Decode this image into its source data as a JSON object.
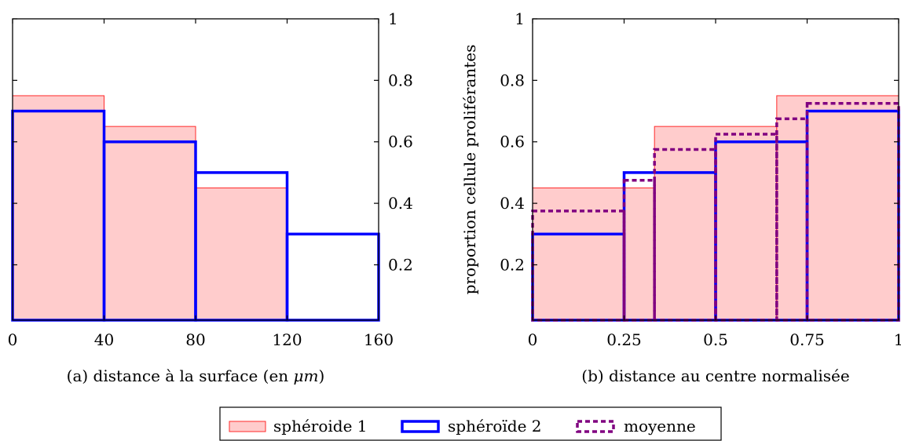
{
  "chart_data": [
    {
      "type": "bar",
      "panel_label": "(a)",
      "caption_pre": "(a) distance à la surface (en ",
      "caption_unit": "μm",
      "caption_post": ")",
      "xlabel": "",
      "ylabel": "",
      "xlim": [
        0,
        160
      ],
      "ylim": [
        0.02,
        1
      ],
      "xticks": [
        "0",
        "40",
        "80",
        "120",
        "160"
      ],
      "xtick_values": [
        0,
        40,
        80,
        120,
        160
      ],
      "yticks": [
        "0.2",
        "0.4",
        "0.6",
        "0.8",
        "1"
      ],
      "ytick_values": [
        0.2,
        0.4,
        0.6,
        0.8,
        1
      ],
      "y_axis_side": "right",
      "series": [
        {
          "name": "sphéroide 1",
          "style": "filled",
          "bins": [
            {
              "x0": 0,
              "x1": 40,
              "y": 0.75
            },
            {
              "x0": 40,
              "x1": 80,
              "y": 0.65
            },
            {
              "x0": 80,
              "x1": 120,
              "y": 0.45
            }
          ]
        },
        {
          "name": "sphéroïde 2",
          "style": "outline",
          "bins": [
            {
              "x0": 0,
              "x1": 40,
              "y": 0.7
            },
            {
              "x0": 40,
              "x1": 80,
              "y": 0.6
            },
            {
              "x0": 80,
              "x1": 120,
              "y": 0.5
            },
            {
              "x0": 120,
              "x1": 160,
              "y": 0.3
            }
          ]
        }
      ]
    },
    {
      "type": "bar",
      "panel_label": "(b)",
      "caption": "(b) distance au centre normalisée",
      "xlabel": "",
      "ylabel": "proportion cellule proliférantes",
      "xlim": [
        0,
        1
      ],
      "ylim": [
        0.02,
        1
      ],
      "xticks": [
        "0",
        "0.25",
        "0.5",
        "0.75",
        "1"
      ],
      "xtick_values": [
        0,
        0.25,
        0.5,
        0.75,
        1
      ],
      "yticks": [
        "0.2",
        "0.4",
        "0.6",
        "0.8",
        "1"
      ],
      "ytick_values": [
        0.2,
        0.4,
        0.6,
        0.8,
        1
      ],
      "y_axis_side": "left",
      "series": [
        {
          "name": "sphéroide 1",
          "style": "filled",
          "bins": [
            {
              "x0": 0,
              "x1": 0.333,
              "y": 0.45
            },
            {
              "x0": 0.333,
              "x1": 0.667,
              "y": 0.65
            },
            {
              "x0": 0.667,
              "x1": 1,
              "y": 0.75
            }
          ]
        },
        {
          "name": "sphéroïde 2",
          "style": "outline",
          "bins": [
            {
              "x0": 0,
              "x1": 0.25,
              "y": 0.3
            },
            {
              "x0": 0.25,
              "x1": 0.5,
              "y": 0.5
            },
            {
              "x0": 0.5,
              "x1": 0.75,
              "y": 0.6
            },
            {
              "x0": 0.75,
              "x1": 1,
              "y": 0.7
            }
          ]
        },
        {
          "name": "moyenne",
          "style": "dashed",
          "bins": [
            {
              "x0": 0,
              "x1": 0.25,
              "y": 0.375
            },
            {
              "x0": 0.25,
              "x1": 0.333,
              "y": 0.475
            },
            {
              "x0": 0.333,
              "x1": 0.5,
              "y": 0.575
            },
            {
              "x0": 0.5,
              "x1": 0.667,
              "y": 0.625
            },
            {
              "x0": 0.667,
              "x1": 0.75,
              "y": 0.675
            },
            {
              "x0": 0.75,
              "x1": 1,
              "y": 0.725
            }
          ]
        }
      ]
    }
  ],
  "legend": {
    "placement": "bottom-center",
    "entries": [
      {
        "label": "sphéroide 1",
        "style": "filled"
      },
      {
        "label": "sphéroïde 2",
        "style": "outline"
      },
      {
        "label": "moyenne",
        "style": "dashed"
      }
    ]
  },
  "colors": {
    "fill": "#ffcccc",
    "fill_stroke": "#ff2a2a",
    "outline": "#0000ff",
    "dashed": "#800080",
    "axis": "#000000"
  }
}
